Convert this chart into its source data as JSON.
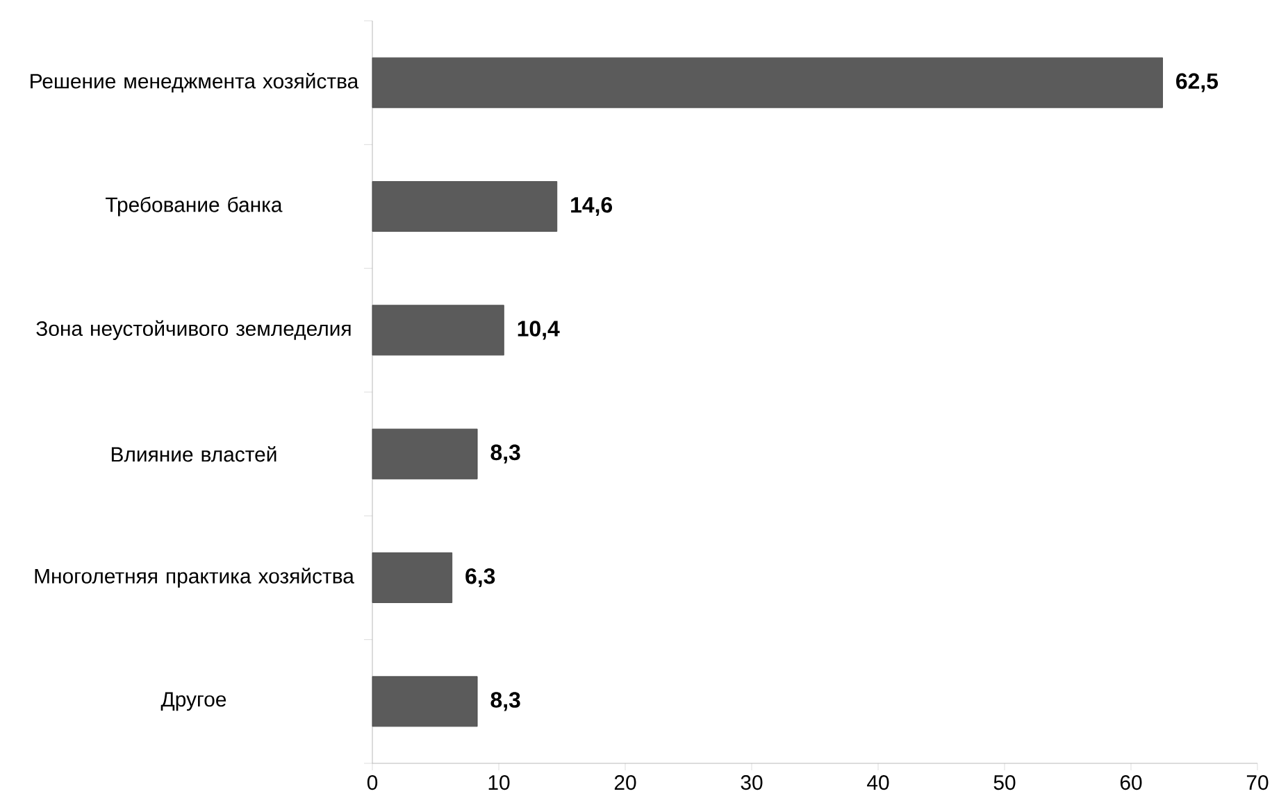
{
  "chart_data": {
    "type": "bar",
    "orientation": "horizontal",
    "categories": [
      "Решение менеджмента хозяйства",
      "Требование банка",
      "Зона неустойчивого земледелия",
      "Влияние властей",
      "Многолетняя практика хозяйства",
      "Другое"
    ],
    "values": [
      62.5,
      14.6,
      10.4,
      8.3,
      6.3,
      8.3
    ],
    "value_labels": [
      "62,5",
      "14,6",
      "10,4",
      "8,3",
      "6,3",
      "8,3"
    ],
    "color": "#5b5b5b",
    "xlim": [
      0,
      70
    ],
    "xticks": [
      0,
      10,
      20,
      30,
      40,
      50,
      60,
      70
    ],
    "grid": false
  }
}
